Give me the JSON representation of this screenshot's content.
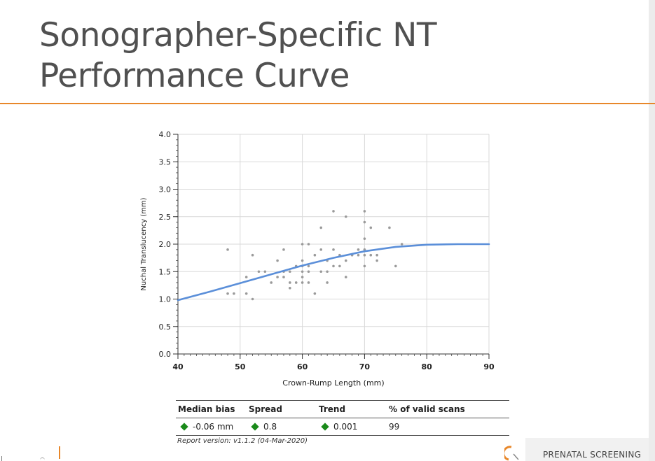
{
  "slide": {
    "title_line1": "Sonographer-Specific NT",
    "title_line2": "Performance Curve"
  },
  "colors": {
    "accent": "#e8872a",
    "curve": "#5b8fd9",
    "points": "#9a9a9a",
    "indicator": "#1a8a1a"
  },
  "chart_data": {
    "type": "scatter",
    "xlabel": "Crown-Rump Length (mm)",
    "ylabel": "Nuchal Translucency (mm)",
    "xlim": [
      40,
      90
    ],
    "ylim": [
      0.0,
      4.0
    ],
    "x_ticks": [
      "40",
      "50",
      "60",
      "70",
      "80",
      "90"
    ],
    "y_ticks": [
      "0.0",
      "0.5",
      "1.0",
      "1.5",
      "2.0",
      "2.5",
      "3.0",
      "3.5",
      "4.0"
    ],
    "grid": true,
    "series": [
      {
        "type": "scatter",
        "points": [
          [
            48,
            1.9
          ],
          [
            48,
            1.1
          ],
          [
            49,
            1.1
          ],
          [
            51,
            1.4
          ],
          [
            51,
            1.1
          ],
          [
            52,
            1.0
          ],
          [
            52,
            1.8
          ],
          [
            53,
            1.5
          ],
          [
            54,
            1.5
          ],
          [
            55,
            1.3
          ],
          [
            56,
            1.4
          ],
          [
            56,
            1.7
          ],
          [
            57,
            1.4
          ],
          [
            57,
            1.5
          ],
          [
            57,
            1.9
          ],
          [
            58,
            1.3
          ],
          [
            58,
            1.5
          ],
          [
            58,
            1.2
          ],
          [
            59,
            1.3
          ],
          [
            59,
            1.6
          ],
          [
            60,
            1.4
          ],
          [
            60,
            1.6
          ],
          [
            60,
            1.7
          ],
          [
            60,
            2.0
          ],
          [
            60,
            1.3
          ],
          [
            60,
            1.5
          ],
          [
            61,
            1.5
          ],
          [
            61,
            1.3
          ],
          [
            61,
            1.6
          ],
          [
            61,
            2.0
          ],
          [
            62,
            1.1
          ],
          [
            62,
            1.8
          ],
          [
            63,
            1.9
          ],
          [
            63,
            2.3
          ],
          [
            63,
            1.5
          ],
          [
            64,
            1.5
          ],
          [
            64,
            1.7
          ],
          [
            64,
            1.3
          ],
          [
            65,
            1.6
          ],
          [
            65,
            1.9
          ],
          [
            65,
            2.6
          ],
          [
            66,
            1.6
          ],
          [
            66,
            1.8
          ],
          [
            67,
            1.4
          ],
          [
            67,
            2.5
          ],
          [
            67,
            1.7
          ],
          [
            68,
            1.8
          ],
          [
            69,
            1.9
          ],
          [
            69,
            1.8
          ],
          [
            70,
            1.6
          ],
          [
            70,
            2.6
          ],
          [
            70,
            2.1
          ],
          [
            70,
            2.4
          ],
          [
            70,
            1.8
          ],
          [
            70,
            1.9
          ],
          [
            71,
            1.8
          ],
          [
            71,
            2.3
          ],
          [
            72,
            1.8
          ],
          [
            72,
            1.7
          ],
          [
            74,
            2.3
          ],
          [
            75,
            1.6
          ],
          [
            76,
            2.0
          ]
        ]
      },
      {
        "type": "line",
        "points": [
          [
            40,
            0.98
          ],
          [
            45,
            1.13
          ],
          [
            50,
            1.29
          ],
          [
            55,
            1.45
          ],
          [
            60,
            1.61
          ],
          [
            65,
            1.75
          ],
          [
            70,
            1.87
          ],
          [
            75,
            1.95
          ],
          [
            80,
            1.99
          ],
          [
            85,
            2.0
          ],
          [
            90,
            2.0
          ]
        ]
      }
    ],
    "metrics": {
      "headers": [
        "Median bias",
        "Spread",
        "Trend",
        "% of valid scans"
      ],
      "values": [
        "-0.06 mm",
        "0.8",
        "0.001",
        "99"
      ]
    },
    "report_version": "Report version: v1.1.2  (04-Mar-2020)"
  },
  "footer": {
    "brand": "PRENATAL SCREENING"
  }
}
